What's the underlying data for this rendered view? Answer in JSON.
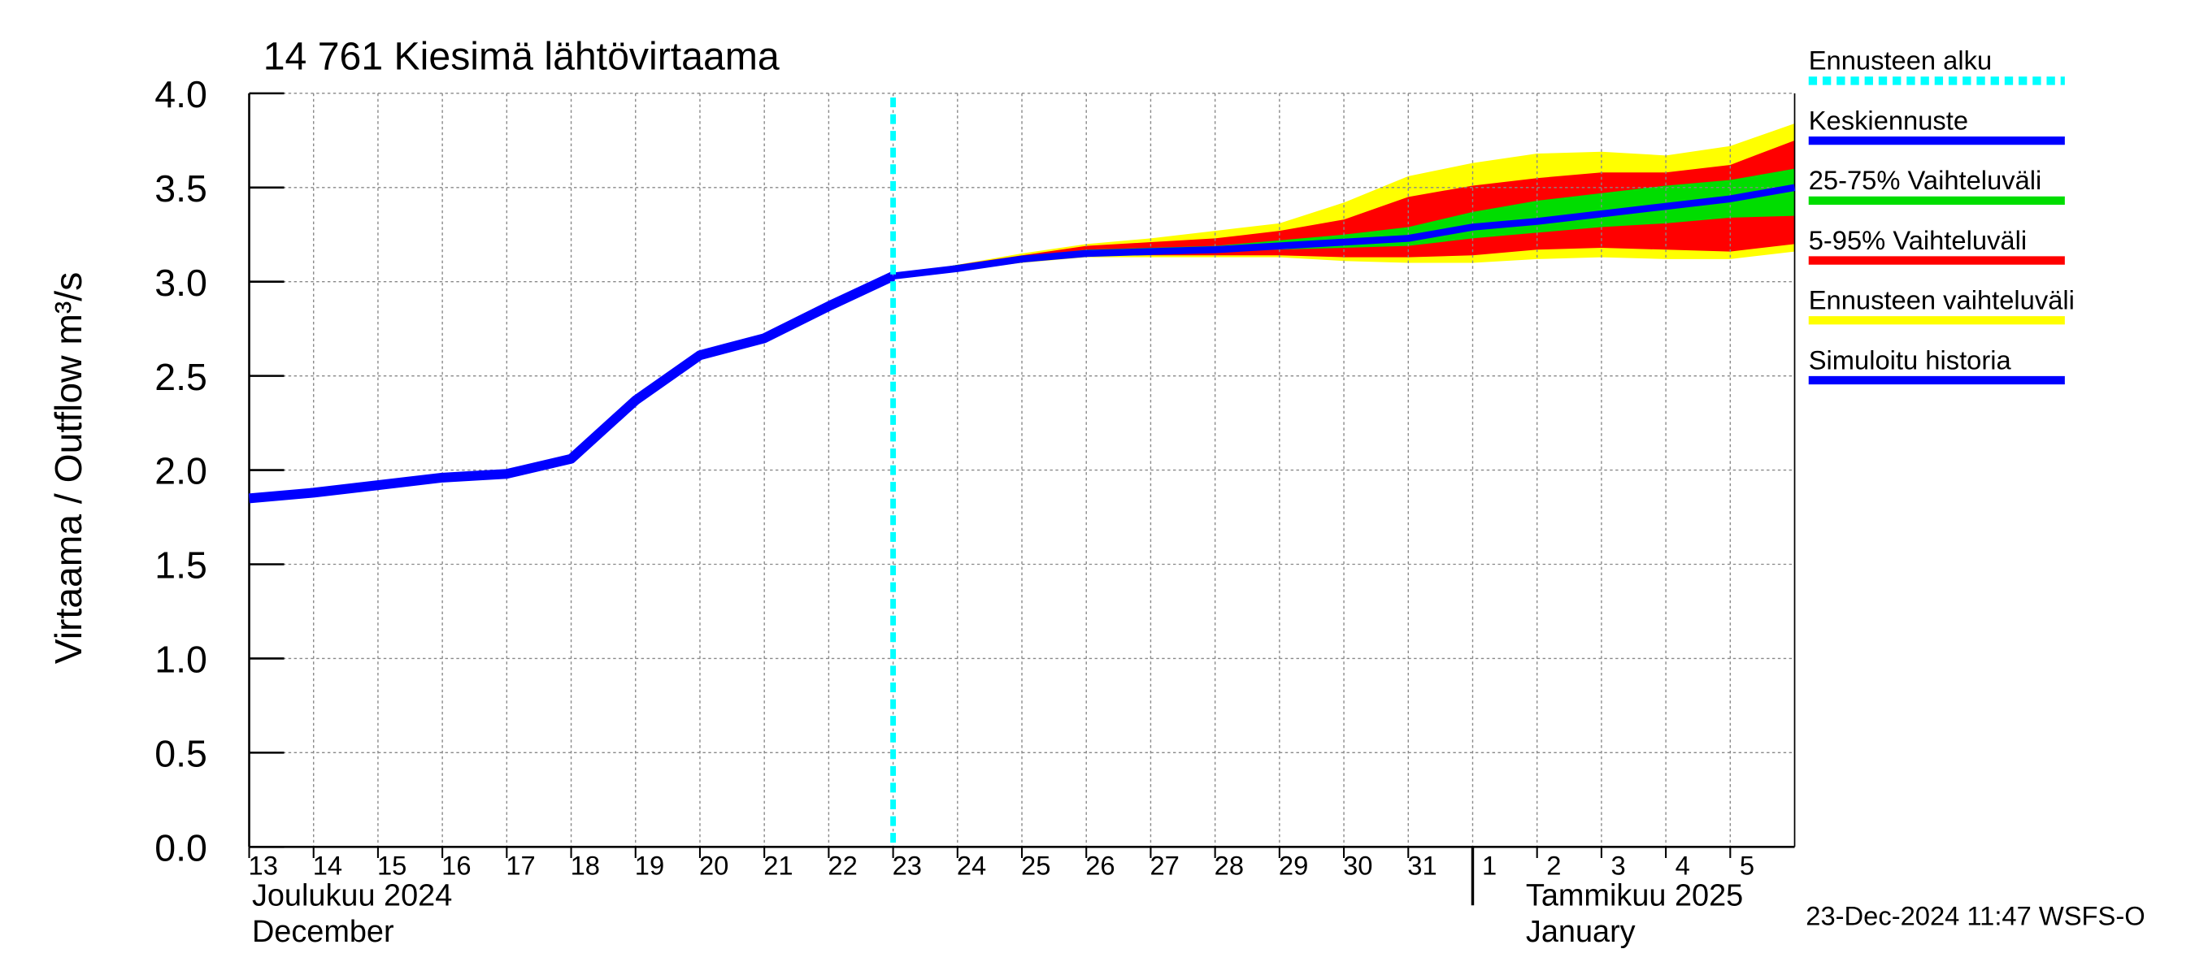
{
  "chart_data": {
    "type": "line",
    "title": "14 761 Kiesimä lähtövirtaama",
    "y_label": "Virtaama / Outflow    m³/s",
    "month_labels": [
      {
        "fi": "Joulukuu  2024",
        "en": "December",
        "category": "13"
      },
      {
        "fi": "Tammikuu  2025",
        "en": "January",
        "category": "2"
      }
    ],
    "timestamp": "23-Dec-2024 11:47 WSFS-O",
    "categories": [
      "13",
      "14",
      "15",
      "16",
      "17",
      "18",
      "19",
      "20",
      "21",
      "22",
      "23",
      "24",
      "25",
      "26",
      "27",
      "28",
      "29",
      "30",
      "31",
      "1",
      "2",
      "3",
      "4",
      "5",
      null
    ],
    "ylim": [
      0,
      4
    ],
    "yticks": [
      {
        "value": 0,
        "label": "0.0"
      },
      0.5,
      {
        "value": 1,
        "label": "1.0"
      },
      1.5,
      {
        "value": 2,
        "label": "2.0"
      },
      2.5,
      {
        "value": 3,
        "label": "3.0"
      },
      3.5,
      {
        "value": 4,
        "label": "4.0"
      }
    ],
    "grid": true,
    "forecast_start": {
      "name": "Ennusteen alku",
      "category": "23",
      "color": "#00ffff"
    },
    "series": [
      {
        "name": "Keskiennuste",
        "color": "#0000ff",
        "values": [
          null,
          null,
          null,
          null,
          null,
          null,
          null,
          null,
          null,
          null,
          3.03,
          3.07,
          3.12,
          3.15,
          3.16,
          3.17,
          3.19,
          3.21,
          3.23,
          3.29,
          3.32,
          3.36,
          3.4,
          3.44,
          3.5
        ]
      },
      {
        "name": "Simuloitu historia",
        "color": "#0000ff",
        "values": [
          1.85,
          1.88,
          1.92,
          1.96,
          1.98,
          2.06,
          2.37,
          2.61,
          2.7,
          2.87,
          3.03,
          null,
          null,
          null,
          null,
          null,
          null,
          null,
          null,
          null,
          null,
          null,
          null,
          null,
          null
        ]
      }
    ],
    "bands": [
      {
        "name": "25-75% Vaihteluväli",
        "color": "#00dd00",
        "lower": [
          null,
          null,
          null,
          null,
          null,
          null,
          null,
          null,
          null,
          null,
          3.03,
          3.06,
          3.12,
          3.14,
          3.15,
          3.16,
          3.17,
          3.18,
          3.19,
          3.23,
          3.26,
          3.29,
          3.31,
          3.34,
          3.35
        ],
        "upper": [
          null,
          null,
          null,
          null,
          null,
          null,
          null,
          null,
          null,
          null,
          3.03,
          3.09,
          3.13,
          3.17,
          3.18,
          3.19,
          3.22,
          3.25,
          3.29,
          3.37,
          3.43,
          3.47,
          3.51,
          3.54,
          3.6
        ]
      },
      {
        "name": "5-95% Vaihteluväli",
        "color": "#ff0000",
        "lower": [
          null,
          null,
          null,
          null,
          null,
          null,
          null,
          null,
          null,
          null,
          3.03,
          3.06,
          3.11,
          3.14,
          3.14,
          3.14,
          3.14,
          3.13,
          3.13,
          3.14,
          3.17,
          3.18,
          3.17,
          3.16,
          3.2
        ],
        "upper": [
          null,
          null,
          null,
          null,
          null,
          null,
          null,
          null,
          null,
          null,
          3.03,
          3.09,
          3.14,
          3.19,
          3.21,
          3.23,
          3.27,
          3.33,
          3.45,
          3.51,
          3.55,
          3.58,
          3.58,
          3.62,
          3.75
        ]
      },
      {
        "name": "Ennusteen vaihteluväli",
        "color": "#ffff00",
        "lower": [
          null,
          null,
          null,
          null,
          null,
          null,
          null,
          null,
          null,
          null,
          3.03,
          3.06,
          3.1,
          3.13,
          3.13,
          3.13,
          3.13,
          3.11,
          3.1,
          3.1,
          3.12,
          3.13,
          3.12,
          3.12,
          3.16
        ],
        "upper": [
          null,
          null,
          null,
          null,
          null,
          null,
          null,
          null,
          null,
          null,
          3.03,
          3.09,
          3.15,
          3.2,
          3.23,
          3.27,
          3.31,
          3.42,
          3.56,
          3.63,
          3.68,
          3.69,
          3.67,
          3.72,
          3.84
        ]
      }
    ]
  }
}
